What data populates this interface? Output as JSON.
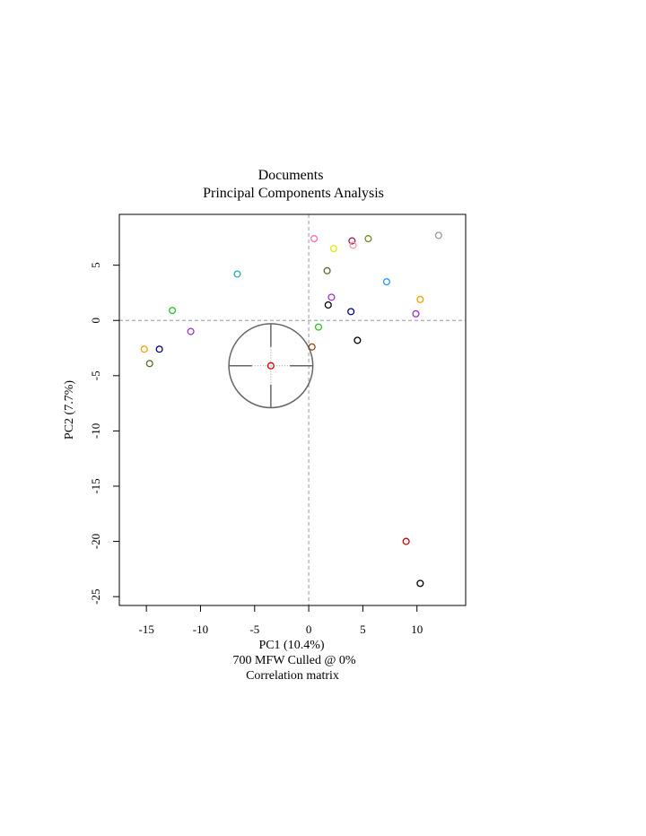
{
  "chart_data": {
    "type": "scatter",
    "title": "Documents",
    "subtitle": "Principal Components Analysis",
    "xlabel": "PC1 (10.4%)",
    "ylabel": "PC2 (7.7%)",
    "caption_lines": [
      "700 MFW  Culled @ 0%",
      "Correlation matrix"
    ],
    "xlim": [
      -17.5,
      14.5
    ],
    "ylim": [
      -25.8,
      9.6
    ],
    "x_ticks": [
      -15,
      -10,
      -5,
      0,
      5,
      10
    ],
    "x_tick_labels": [
      "-15",
      "-10",
      "-5",
      "0",
      "5",
      "10"
    ],
    "y_ticks": [
      5,
      0,
      -5,
      -10,
      -15,
      -20,
      -25
    ],
    "y_tick_labels": [
      "5",
      "0",
      "-5",
      "-10",
      "-15",
      "-20",
      "-25"
    ],
    "reference_lines": {
      "x": 0,
      "y": 0
    },
    "grid": false,
    "legend": "none",
    "marker": "open-circle",
    "crosshair": {
      "x": -3.5,
      "y": -4.1,
      "radius": 3.8
    },
    "points": [
      {
        "x": -15.2,
        "y": -2.6,
        "color": "#f5a000"
      },
      {
        "x": -13.8,
        "y": -2.6,
        "color": "#00008b"
      },
      {
        "x": -14.7,
        "y": -3.9,
        "color": "#556b2f"
      },
      {
        "x": -12.6,
        "y": 0.9,
        "color": "#22c422"
      },
      {
        "x": -10.9,
        "y": -1.0,
        "color": "#9932cc"
      },
      {
        "x": -6.6,
        "y": 4.2,
        "color": "#20b2aa"
      },
      {
        "x": -3.5,
        "y": -4.1,
        "color": "#cc0000"
      },
      {
        "x": 0.5,
        "y": 7.4,
        "color": "#ff69b4"
      },
      {
        "x": 0.3,
        "y": -2.4,
        "color": "#8b4513"
      },
      {
        "x": 0.9,
        "y": -0.6,
        "color": "#22c422"
      },
      {
        "x": 1.7,
        "y": 4.5,
        "color": "#556b2f"
      },
      {
        "x": 1.8,
        "y": 1.4,
        "color": "#000000"
      },
      {
        "x": 2.1,
        "y": 2.1,
        "color": "#9932cc"
      },
      {
        "x": 2.3,
        "y": 6.5,
        "color": "#e6e600"
      },
      {
        "x": 3.9,
        "y": 0.8,
        "color": "#00008b"
      },
      {
        "x": 4.0,
        "y": 7.2,
        "color": "#8b1a5a"
      },
      {
        "x": 4.1,
        "y": 6.8,
        "color": "#ff9999"
      },
      {
        "x": 4.5,
        "y": -1.8,
        "color": "#000000"
      },
      {
        "x": 5.5,
        "y": 7.4,
        "color": "#6b8e23"
      },
      {
        "x": 7.2,
        "y": 3.5,
        "color": "#1e90ff"
      },
      {
        "x": 9.9,
        "y": 0.6,
        "color": "#9932cc"
      },
      {
        "x": 10.3,
        "y": 1.9,
        "color": "#f5a000"
      },
      {
        "x": 12.0,
        "y": 7.7,
        "color": "#999999"
      },
      {
        "x": 9.0,
        "y": -20.0,
        "color": "#cc0000"
      },
      {
        "x": 10.3,
        "y": -23.8,
        "color": "#000000"
      }
    ]
  }
}
